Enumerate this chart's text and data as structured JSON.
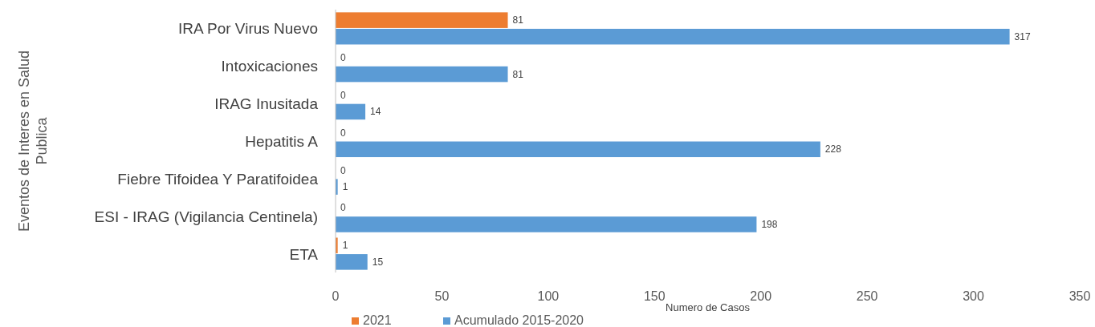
{
  "chart_data": {
    "type": "bar",
    "orientation": "horizontal",
    "xlabel": "Numero de Casos",
    "ylabel": "Eventos de Interes en Salud Publica",
    "categories": [
      "IRA Por Virus Nuevo",
      "Intoxicaciones",
      "IRAG Inusitada",
      "Hepatitis A",
      "Fiebre Tifoidea Y Paratifoidea",
      "ESI - IRAG (Vigilancia Centinela)",
      "ETA"
    ],
    "series": [
      {
        "name": "2021",
        "color": "#ed7d31",
        "values": [
          81,
          0,
          0,
          0,
          0,
          0,
          1
        ]
      },
      {
        "name": "Acumulado 2015-2020",
        "color": "#5b9bd5",
        "values": [
          317,
          81,
          14,
          228,
          1,
          198,
          15
        ]
      }
    ],
    "xlim": [
      0,
      350
    ],
    "xticks": [
      0,
      50,
      100,
      150,
      200,
      250,
      300,
      350
    ],
    "data_labels": true,
    "legend": "bottom",
    "grid": false
  }
}
